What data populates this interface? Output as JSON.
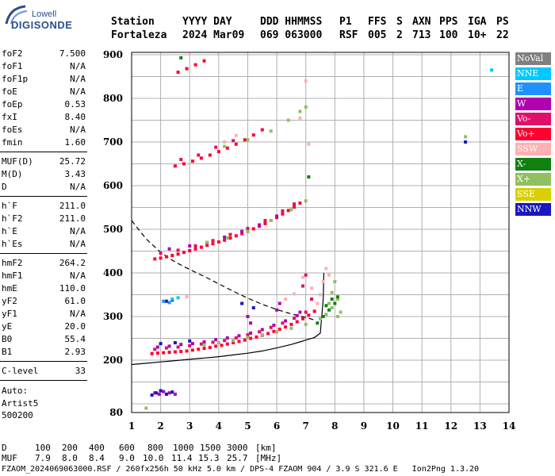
{
  "logo": {
    "line1": "Lowell",
    "line2": "DIGISONDE"
  },
  "header": {
    "row1": [
      "Station",
      "YYYY DAY",
      "DDD HHMMSS",
      "P1",
      "FFS",
      "S",
      "AXN",
      "PPS",
      "IGA",
      "PS"
    ],
    "row2": [
      "Fortaleza",
      "2024 Mar09",
      "069 063000",
      "RSF",
      "005",
      "2",
      "713",
      "100",
      "10+",
      "22"
    ]
  },
  "params_group1": [
    {
      "name": "foF2",
      "value": "7.500"
    },
    {
      "name": "foF1",
      "value": "N/A"
    },
    {
      "name": "foF1p",
      "value": "N/A"
    },
    {
      "name": "foE",
      "value": "N/A"
    },
    {
      "name": "foEp",
      "value": "0.53"
    },
    {
      "name": "fxI",
      "value": "8.40"
    },
    {
      "name": "foEs",
      "value": "N/A"
    },
    {
      "name": "fmin",
      "value": "1.60"
    }
  ],
  "params_group2": [
    {
      "name": "MUF(D)",
      "value": "25.72"
    },
    {
      "name": "M(D)",
      "value": "3.43"
    },
    {
      "name": "D",
      "value": "N/A"
    }
  ],
  "params_group3": [
    {
      "name": "h`F",
      "value": "211.0"
    },
    {
      "name": "h`F2",
      "value": "211.0"
    },
    {
      "name": "h`E",
      "value": "N/A"
    },
    {
      "name": "h`Es",
      "value": "N/A"
    }
  ],
  "params_group4": [
    {
      "name": "hmF2",
      "value": "264.2"
    },
    {
      "name": "hmF1",
      "value": "N/A"
    },
    {
      "name": "hmE",
      "value": "110.0"
    },
    {
      "name": "yF2",
      "value": "61.0"
    },
    {
      "name": "yF1",
      "value": "N/A"
    },
    {
      "name": "yE",
      "value": "20.0"
    },
    {
      "name": "B0",
      "value": "55.4"
    },
    {
      "name": "B1",
      "value": "2.93"
    }
  ],
  "params_group5": [
    {
      "name": "C-level",
      "value": "33"
    }
  ],
  "autoscale": {
    "line1": "Auto:",
    "line2": "Artist5",
    "line3": "500200"
  },
  "legend": [
    {
      "label": "NoVal",
      "bg": "#808080",
      "fg": "#ffffff"
    },
    {
      "label": "NNE",
      "bg": "#00c8ff",
      "fg": "#ffffff"
    },
    {
      "label": "E",
      "bg": "#2090ff",
      "fg": "#ffffff"
    },
    {
      "label": "W",
      "bg": "#b000b0",
      "fg": "#ffffff"
    },
    {
      "label": "Vo-",
      "bg": "#e0106a",
      "fg": "#ffffff"
    },
    {
      "label": "Vo+",
      "bg": "#ff0030",
      "fg": "#ffffff"
    },
    {
      "label": "SSW",
      "bg": "#ffb0b0",
      "fg": "#ffffff"
    },
    {
      "label": "X-",
      "bg": "#108010",
      "fg": "#ffffff"
    },
    {
      "label": "X+",
      "bg": "#90c060",
      "fg": "#ffffff"
    },
    {
      "label": "SSE",
      "bg": "#d8d000",
      "fg": "#ffffff"
    },
    {
      "label": "NNW",
      "bg": "#1818c0",
      "fg": "#ffffff"
    }
  ],
  "bottom_table": {
    "row_d_label": "D",
    "row_d_values": [
      "100",
      "200",
      "400",
      "600",
      "800",
      "1000",
      "1500",
      "3000"
    ],
    "row_d_unit": "[km]",
    "row_muf_label": "MUF",
    "row_muf_values": [
      "7.9",
      "8.0",
      "8.4",
      "9.0",
      "10.0",
      "11.4",
      "15.3",
      "25.7"
    ],
    "row_muf_unit": "[MHz]"
  },
  "footer": "FZAOM_2024069063000.RSF / 260fx256h 50 kHz 5.0 km / DPS-4 FZAOM 904 / 3.9 S 321.6 E   Ion2Png 1.3.20",
  "chart_data": {
    "type": "scatter",
    "title": "",
    "xlabel": "",
    "ylabel": "",
    "xlim": [
      1,
      14
    ],
    "ylim": [
      80,
      900
    ],
    "xticks": [
      "1",
      "2",
      "3",
      "4",
      "5",
      "6",
      "7",
      "8",
      "9",
      "10",
      "11",
      "12",
      "13",
      "14"
    ],
    "yticks": [
      "80",
      "200",
      "300",
      "400",
      "500",
      "600",
      "700",
      "800",
      "900"
    ],
    "grid": true,
    "series": [
      {
        "name": "Vo+",
        "color": "#ff0030",
        "points": [
          [
            1.7,
            215
          ],
          [
            1.9,
            216
          ],
          [
            2.1,
            217
          ],
          [
            2.3,
            218
          ],
          [
            2.5,
            219
          ],
          [
            2.7,
            220
          ],
          [
            2.9,
            221
          ],
          [
            3.1,
            223
          ],
          [
            3.3,
            225
          ],
          [
            3.5,
            227
          ],
          [
            3.7,
            229
          ],
          [
            3.9,
            232
          ],
          [
            4.1,
            234
          ],
          [
            4.3,
            237
          ],
          [
            4.5,
            240
          ],
          [
            4.7,
            243
          ],
          [
            4.9,
            246
          ],
          [
            5.1,
            250
          ],
          [
            5.3,
            253
          ],
          [
            5.5,
            257
          ],
          [
            5.7,
            261
          ],
          [
            5.9,
            266
          ],
          [
            6.1,
            271
          ],
          [
            6.3,
            276
          ],
          [
            6.5,
            282
          ],
          [
            6.7,
            288
          ],
          [
            6.9,
            295
          ],
          [
            7.1,
            303
          ],
          [
            7.3,
            312
          ],
          [
            1.8,
            432
          ],
          [
            2.0,
            434
          ],
          [
            2.2,
            437
          ],
          [
            2.4,
            440
          ],
          [
            2.6,
            443
          ],
          [
            2.8,
            447
          ],
          [
            3.0,
            451
          ],
          [
            3.2,
            455
          ],
          [
            3.4,
            459
          ],
          [
            3.6,
            463
          ],
          [
            3.8,
            467
          ],
          [
            4.0,
            471
          ],
          [
            4.2,
            475
          ],
          [
            4.4,
            480
          ],
          [
            4.6,
            485
          ],
          [
            4.8,
            490
          ],
          [
            5.0,
            495
          ],
          [
            5.2,
            501
          ],
          [
            5.4,
            507
          ],
          [
            5.6,
            513
          ],
          [
            5.8,
            520
          ],
          [
            6.0,
            527
          ],
          [
            6.2,
            535
          ],
          [
            6.4,
            543
          ],
          [
            6.6,
            551
          ],
          [
            6.8,
            560
          ],
          [
            2.5,
            645
          ],
          [
            2.8,
            650
          ],
          [
            3.1,
            656
          ],
          [
            3.4,
            663
          ],
          [
            3.7,
            670
          ],
          [
            4.0,
            678
          ],
          [
            4.3,
            686
          ],
          [
            4.6,
            695
          ],
          [
            4.9,
            705
          ],
          [
            5.2,
            716
          ],
          [
            5.5,
            728
          ],
          [
            2.6,
            860
          ],
          [
            2.9,
            868
          ],
          [
            3.2,
            877
          ],
          [
            3.5,
            886
          ]
        ]
      },
      {
        "name": "Vo-",
        "color": "#e0106a",
        "points": [
          [
            1.8,
            225
          ],
          [
            2.2,
            228
          ],
          [
            2.6,
            230
          ],
          [
            3.0,
            233
          ],
          [
            3.4,
            237
          ],
          [
            3.8,
            241
          ],
          [
            4.2,
            245
          ],
          [
            4.6,
            251
          ],
          [
            5.0,
            258
          ],
          [
            5.4,
            265
          ],
          [
            5.8,
            275
          ],
          [
            6.2,
            285
          ],
          [
            6.6,
            296
          ],
          [
            7.0,
            310
          ],
          [
            2.0,
            445
          ],
          [
            2.6,
            452
          ],
          [
            3.2,
            462
          ],
          [
            3.8,
            474
          ],
          [
            4.4,
            488
          ],
          [
            5.0,
            502
          ],
          [
            5.6,
            520
          ],
          [
            6.2,
            542
          ],
          [
            6.6,
            558
          ],
          [
            6.9,
            370
          ],
          [
            7.0,
            395
          ],
          [
            7.2,
            340
          ],
          [
            2.7,
            660
          ],
          [
            3.3,
            670
          ],
          [
            3.9,
            688
          ],
          [
            4.5,
            703
          ]
        ]
      },
      {
        "name": "W",
        "color": "#b000b0",
        "points": [
          [
            1.9,
            230
          ],
          [
            2.3,
            232
          ],
          [
            2.7,
            236
          ],
          [
            3.1,
            238
          ],
          [
            3.5,
            242
          ],
          [
            3.9,
            247
          ],
          [
            4.3,
            251
          ],
          [
            4.7,
            256
          ],
          [
            5.1,
            262
          ],
          [
            5.5,
            270
          ],
          [
            5.9,
            280
          ],
          [
            6.3,
            290
          ],
          [
            6.7,
            302
          ],
          [
            5.0,
            300
          ],
          [
            5.1,
            285
          ],
          [
            6.0,
            315
          ],
          [
            6.1,
            330
          ],
          [
            6.8,
            310
          ],
          [
            2.3,
            455
          ],
          [
            3.0,
            462
          ],
          [
            3.6,
            470
          ],
          [
            4.2,
            482
          ],
          [
            4.8,
            495
          ],
          [
            5.4,
            510
          ],
          [
            6.0,
            530
          ],
          [
            1.8,
            125
          ],
          [
            1.95,
            122
          ],
          [
            2.1,
            128
          ],
          [
            2.3,
            125
          ],
          [
            2.5,
            122
          ]
        ]
      },
      {
        "name": "NNW",
        "color": "#1818c0",
        "points": [
          [
            1.7,
            120
          ],
          [
            1.85,
            125
          ],
          [
            2.0,
            130
          ],
          [
            2.2,
            122
          ],
          [
            2.4,
            127
          ],
          [
            2.0,
            238
          ],
          [
            2.5,
            240
          ],
          [
            3.0,
            244
          ],
          [
            2.2,
            335
          ],
          [
            2.4,
            338
          ],
          [
            4.8,
            330
          ],
          [
            5.2,
            320
          ],
          [
            12.5,
            700
          ]
        ]
      },
      {
        "name": "X+",
        "color": "#90c060",
        "points": [
          [
            3.5,
            235
          ],
          [
            4.0,
            240
          ],
          [
            4.5,
            245
          ],
          [
            5.0,
            252
          ],
          [
            5.5,
            258
          ],
          [
            6.0,
            265
          ],
          [
            6.5,
            273
          ],
          [
            7.0,
            282
          ],
          [
            7.5,
            295
          ],
          [
            7.7,
            305
          ],
          [
            7.8,
            330
          ],
          [
            7.9,
            355
          ],
          [
            8.0,
            380
          ],
          [
            8.1,
            340
          ],
          [
            8.2,
            310
          ],
          [
            8.1,
            300
          ],
          [
            7.9,
            320
          ],
          [
            3.6,
            470
          ],
          [
            4.3,
            480
          ],
          [
            5.0,
            495
          ],
          [
            5.8,
            520
          ],
          [
            6.5,
            545
          ],
          [
            7.0,
            565
          ],
          [
            4.2,
            690
          ],
          [
            5.0,
            705
          ],
          [
            5.8,
            725
          ],
          [
            6.4,
            750
          ],
          [
            6.8,
            770
          ],
          [
            7.0,
            780
          ],
          [
            1.5,
            90
          ],
          [
            12.5,
            712
          ]
        ]
      },
      {
        "name": "X-",
        "color": "#108010",
        "points": [
          [
            7.6,
            300
          ],
          [
            7.8,
            315
          ],
          [
            8.0,
            330
          ],
          [
            8.1,
            345
          ],
          [
            7.9,
            340
          ],
          [
            7.7,
            325
          ],
          [
            7.4,
            285
          ],
          [
            7.1,
            620
          ],
          [
            2.7,
            893
          ]
        ]
      },
      {
        "name": "SSW",
        "color": "#ffb0b0",
        "points": [
          [
            7.5,
            350
          ],
          [
            7.6,
            380
          ],
          [
            7.7,
            410
          ],
          [
            7.8,
            395
          ],
          [
            7.4,
            330
          ],
          [
            7.2,
            365
          ],
          [
            6.9,
            390
          ],
          [
            6.6,
            352
          ],
          [
            6.3,
            340
          ],
          [
            7.0,
            840
          ],
          [
            4.2,
            700
          ],
          [
            4.6,
            715
          ],
          [
            6.8,
            755
          ],
          [
            7.1,
            695
          ],
          [
            2.9,
            345
          ]
        ]
      },
      {
        "name": "NNE",
        "color": "#00c8ff",
        "points": [
          [
            2.4,
            340
          ],
          [
            2.6,
            343
          ],
          [
            13.4,
            865
          ]
        ]
      },
      {
        "name": "E",
        "color": "#2090ff",
        "points": [
          [
            2.1,
            335
          ],
          [
            2.3,
            332
          ]
        ]
      }
    ],
    "curves": [
      {
        "name": "profile-solid",
        "style": "solid",
        "points": [
          [
            1.0,
            190
          ],
          [
            1.5,
            193
          ],
          [
            2.0,
            196
          ],
          [
            2.5,
            199
          ],
          [
            3.0,
            202
          ],
          [
            3.5,
            205
          ],
          [
            4.0,
            208
          ],
          [
            4.5,
            212
          ],
          [
            5.0,
            216
          ],
          [
            5.5,
            221
          ],
          [
            6.0,
            228
          ],
          [
            6.5,
            236
          ],
          [
            7.0,
            246
          ],
          [
            7.3,
            252
          ],
          [
            7.5,
            262
          ],
          [
            7.55,
            300
          ],
          [
            7.6,
            340
          ],
          [
            7.62,
            400
          ]
        ]
      },
      {
        "name": "profile-dashed",
        "style": "dashed",
        "points": [
          [
            1.0,
            520
          ],
          [
            1.5,
            478
          ],
          [
            2.0,
            447
          ],
          [
            2.5,
            425
          ],
          [
            3.0,
            408
          ],
          [
            3.5,
            392
          ],
          [
            4.0,
            375
          ],
          [
            4.5,
            358
          ],
          [
            5.0,
            342
          ],
          [
            5.5,
            328
          ],
          [
            6.0,
            316
          ],
          [
            6.5,
            306
          ],
          [
            7.0,
            298
          ],
          [
            7.3,
            292
          ]
        ]
      }
    ]
  }
}
